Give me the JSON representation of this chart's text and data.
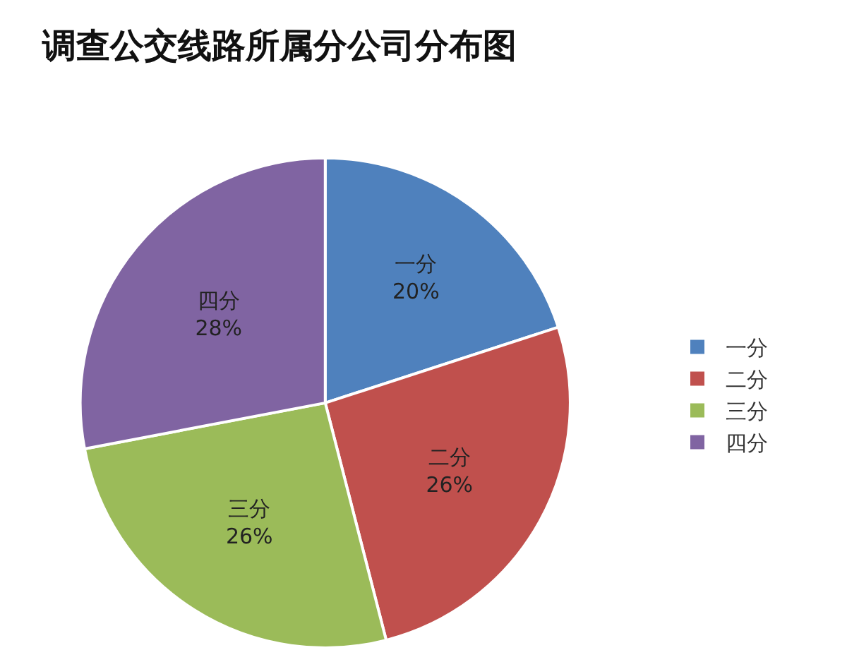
{
  "chart_data": {
    "type": "pie",
    "title": "调查公交线路所属分公司分布图",
    "categories": [
      "一分",
      "二分",
      "三分",
      "四分"
    ],
    "values": [
      20,
      26,
      26,
      28
    ],
    "value_labels": [
      "20%",
      "26%",
      "26%",
      "28%"
    ],
    "colors": [
      "#4f81bd",
      "#c0504d",
      "#9bbb59",
      "#8064a2"
    ],
    "legend": "right"
  }
}
